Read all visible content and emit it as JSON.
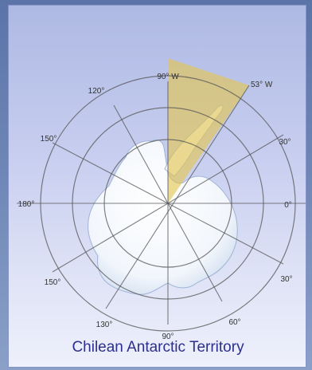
{
  "map": {
    "title": "Chilean Antarctic Territory",
    "claim": {
      "from": "90° W",
      "to": "53° W",
      "color": "#e4c54d"
    },
    "longitude_labels": {
      "top": "90° W",
      "top_right": "53° W",
      "upper_left_1": "120°",
      "upper_left_2": "150°",
      "left": "180°",
      "lower_left": "150°",
      "bottom_left": "130°",
      "bottom": "90°",
      "bottom_right": "60°",
      "lower_right": "30°",
      "right": "0°",
      "upper_right": "30°"
    }
  }
}
